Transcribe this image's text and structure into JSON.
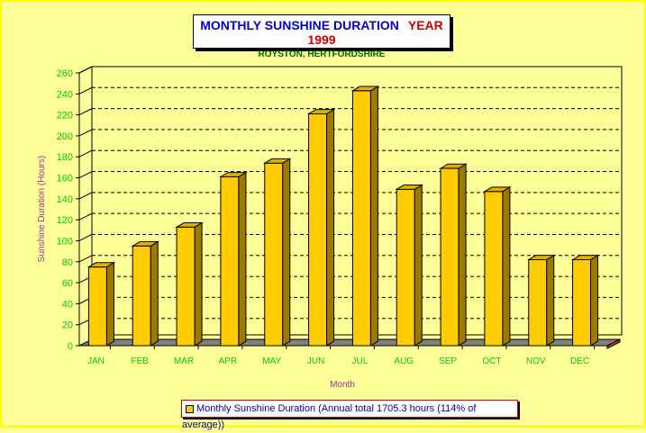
{
  "title": {
    "main": "MONTHLY SUNSHINE DURATION",
    "year": "YEAR 1999",
    "subtitle": "ROYSTON, HERTFORDSHIRE"
  },
  "legend": {
    "label": "Monthly Sunshine Duration (Annual total 1705.3 hours (114% of average))"
  },
  "colors": {
    "bar_front": "#ffcc00",
    "bar_side": "#9c7a00",
    "bar_top": "#e0b000",
    "floor": "#808080",
    "background": "#ffff99",
    "tick_labels": "#00cc00",
    "axis_title": "#993399"
  },
  "chart_data": {
    "type": "bar",
    "title": "MONTHLY SUNSHINE DURATION   YEAR 1999",
    "subtitle": "ROYSTON, HERTFORDSHIRE",
    "xlabel": "Month",
    "ylabel": "Sunshine Duration (Hours)",
    "categories": [
      "JAN",
      "FEB",
      "MAR",
      "APR",
      "MAY",
      "JUN",
      "JUL",
      "AUG",
      "SEP",
      "OCT",
      "NOV",
      "DEC"
    ],
    "series": [
      {
        "name": "Monthly Sunshine Duration (Annual total 1705.3 hours (114% of average))",
        "values": [
          75,
          95,
          113,
          161,
          174,
          221,
          243,
          149,
          169,
          147,
          82,
          82
        ]
      }
    ],
    "ylim": [
      0,
      260
    ],
    "yticks": [
      0,
      20,
      40,
      60,
      80,
      100,
      120,
      140,
      160,
      180,
      200,
      220,
      240,
      260
    ],
    "grid": true,
    "legend_position": "bottom"
  }
}
